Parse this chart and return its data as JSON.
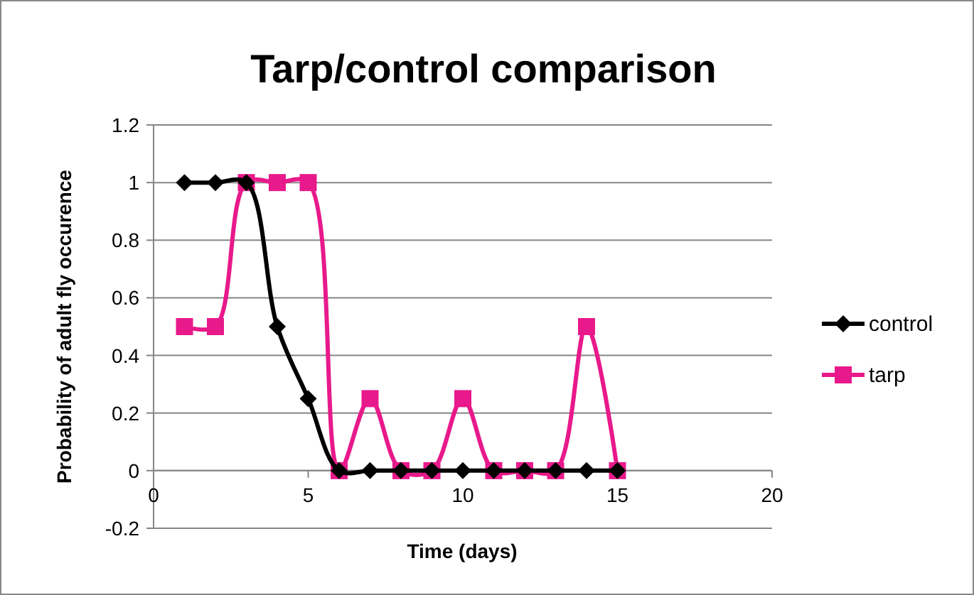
{
  "chart_data": {
    "type": "line",
    "title": "Tarp/control comparison",
    "xlabel": "Time (days)",
    "ylabel": "Probability of adult fly occurence",
    "x": [
      1,
      2,
      3,
      4,
      5,
      6,
      7,
      8,
      9,
      10,
      11,
      12,
      13,
      14,
      15
    ],
    "series": [
      {
        "name": "control",
        "color": "#000000",
        "marker": "diamond",
        "values": [
          1,
          1,
          1,
          0.5,
          0.25,
          0,
          0,
          0,
          0,
          0,
          0,
          0,
          0,
          0,
          0
        ]
      },
      {
        "name": "tarp",
        "color": "#e8198b",
        "marker": "square",
        "values": [
          0.5,
          0.5,
          1,
          1,
          1,
          0,
          0.25,
          0,
          0,
          0.25,
          0,
          0,
          0,
          0.5,
          0
        ]
      }
    ],
    "xlim": [
      0,
      20
    ],
    "xticks": [
      0,
      5,
      10,
      15,
      20
    ],
    "ylim": [
      -0.2,
      1.2
    ],
    "yticks": [
      -0.2,
      0,
      0.2,
      0.4,
      0.6,
      0.8,
      1,
      1.2
    ],
    "grid": "y",
    "legend": "right"
  }
}
